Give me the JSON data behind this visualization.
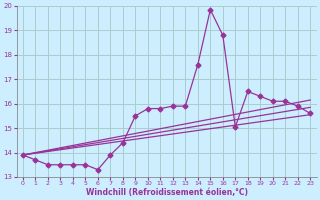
{
  "xlabel": "Windchill (Refroidissement éolien,°C)",
  "background_color": "#cceeff",
  "grid_color": "#aacccc",
  "line_color": "#993399",
  "xlim": [
    -0.5,
    23.5
  ],
  "ylim": [
    13,
    20
  ],
  "yticks": [
    13,
    14,
    15,
    16,
    17,
    18,
    19,
    20
  ],
  "xticks": [
    0,
    1,
    2,
    3,
    4,
    5,
    6,
    7,
    8,
    9,
    10,
    11,
    12,
    13,
    14,
    15,
    16,
    17,
    18,
    19,
    20,
    21,
    22,
    23
  ],
  "series_x": [
    0,
    1,
    2,
    3,
    4,
    5,
    6,
    7,
    8,
    9,
    10,
    11,
    12,
    13,
    14,
    15,
    16,
    17,
    18,
    19,
    20,
    21,
    22,
    23
  ],
  "series_y": [
    13.9,
    13.7,
    13.5,
    13.5,
    13.5,
    13.5,
    13.3,
    13.9,
    14.4,
    15.5,
    15.8,
    15.8,
    15.9,
    15.9,
    17.6,
    19.85,
    18.8,
    15.05,
    16.5,
    16.3,
    16.1,
    16.1,
    15.9,
    15.6
  ],
  "trend1_x": [
    0,
    23
  ],
  "trend1_y": [
    13.9,
    15.55
  ],
  "trend2_x": [
    0,
    23
  ],
  "trend2_y": [
    13.9,
    15.85
  ],
  "trend3_x": [
    0,
    23
  ],
  "trend3_y": [
    13.9,
    16.15
  ]
}
